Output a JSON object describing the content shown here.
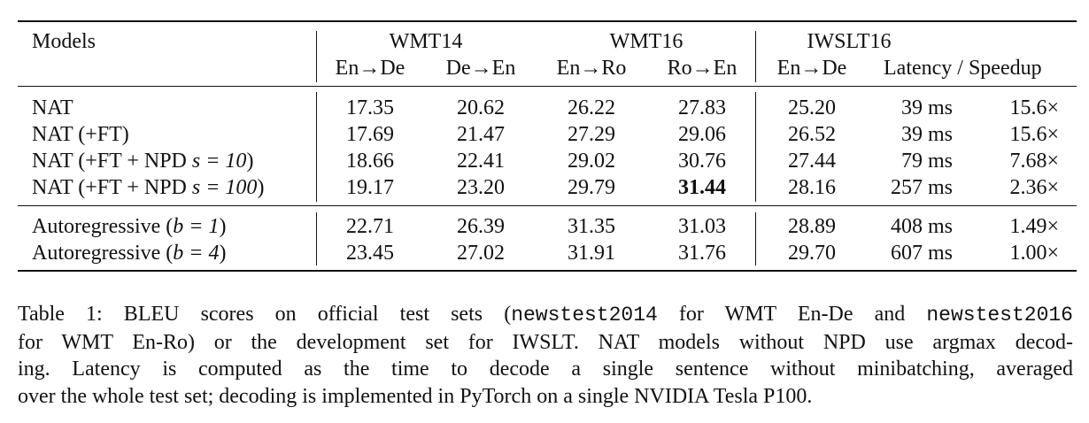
{
  "table": {
    "models_header": "Models",
    "groups": [
      "WMT14",
      "WMT16",
      "IWSLT16"
    ],
    "subheaders": [
      "En→De",
      "De→En",
      "En→Ro",
      "Ro→En",
      "En→De",
      "Latency / Speedup"
    ],
    "rows_nat": [
      {
        "model_prefix": "NAT",
        "model_math": "",
        "model_suffix": "",
        "cells": [
          "17.35",
          "20.62",
          "26.22",
          "27.83",
          "25.20",
          "39 ms",
          "15.6×"
        ]
      },
      {
        "model_prefix": "NAT (+FT)",
        "model_math": "",
        "model_suffix": "",
        "cells": [
          "17.69",
          "21.47",
          "27.29",
          "29.06",
          "26.52",
          "39 ms",
          "15.6×"
        ]
      },
      {
        "model_prefix": "NAT (+FT + NPD ",
        "model_math": "s = 10",
        "model_suffix": ")",
        "cells": [
          "18.66",
          "22.41",
          "29.02",
          "30.76",
          "27.44",
          "79 ms",
          "7.68×"
        ]
      },
      {
        "model_prefix": "NAT (+FT + NPD ",
        "model_math": "s = 100",
        "model_suffix": ")",
        "cells": [
          "19.17",
          "23.20",
          "29.79",
          "31.44",
          "28.16",
          "257 ms",
          "2.36×"
        ]
      }
    ],
    "rows_ar": [
      {
        "model_prefix": "Autoregressive (",
        "model_math": "b = 1",
        "model_suffix": ")",
        "cells": [
          "22.71",
          "26.39",
          "31.35",
          "31.03",
          "28.89",
          "408 ms",
          "1.49×"
        ]
      },
      {
        "model_prefix": "Autoregressive (",
        "model_math": "b = 4",
        "model_suffix": ")",
        "cells": [
          "23.45",
          "27.02",
          "31.91",
          "31.76",
          "29.70",
          "607 ms",
          "1.00×"
        ]
      }
    ],
    "bold_cell": {
      "row": 3,
      "col": 3
    }
  },
  "caption": {
    "line1_a": "Table 1: BLEU scores on official test sets (",
    "line1_code1": "newstest2014",
    "line1_b": " for WMT En-De and ",
    "line1_code2": "newstest2016",
    "line2": "for WMT En-Ro) or the development set for IWSLT. NAT models without NPD use argmax decod-",
    "line3": "ing. Latency is computed as the time to decode a single sentence without minibatching, averaged",
    "line4": "over the whole test set; decoding is implemented in PyTorch on a single NVIDIA Tesla P100."
  }
}
